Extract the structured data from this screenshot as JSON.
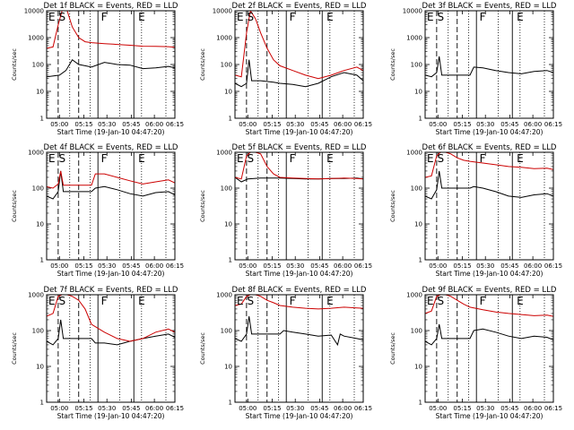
{
  "figure": {
    "x_title": "Start Time (19-Jan-10 04:47:20)",
    "y_label": "Counts/sec"
  },
  "chart_data": [
    {
      "type": "line",
      "title": "Det 1f BLACK = Events, RED = LLD",
      "xlabel": "Start Time (19-Jan-10 04:47:20)",
      "ylabel": "Counts/sec",
      "y_scale": "log",
      "ylim": [
        1,
        10000
      ],
      "x_ticks": [
        "05:00",
        "05:15",
        "05:30",
        "05:45",
        "06:00",
        "06:15"
      ],
      "y_ticks": [
        "1",
        "10",
        "100",
        "1000",
        "10000"
      ],
      "region_labels": [
        "E",
        "S",
        "F",
        "E"
      ],
      "series": [
        {
          "name": "Events",
          "color": "#000000",
          "x": [
            0,
            0.1,
            0.15,
            0.2,
            0.25,
            0.3,
            0.35,
            0.45,
            0.55,
            0.65,
            0.75,
            0.85,
            0.95,
            1
          ],
          "y": [
            35,
            40,
            60,
            150,
            100,
            90,
            80,
            120,
            100,
            95,
            70,
            75,
            85,
            75
          ]
        },
        {
          "name": "LLD",
          "color": "#cc0000",
          "x": [
            0,
            0.05,
            0.09,
            0.12,
            0.16,
            0.2,
            0.25,
            0.3,
            0.35,
            0.45,
            0.55,
            0.65,
            0.75,
            0.85,
            0.95,
            1
          ],
          "y": [
            400,
            450,
            3000,
            10000,
            10000,
            2500,
            1000,
            700,
            650,
            600,
            560,
            520,
            480,
            470,
            460,
            440
          ]
        }
      ]
    },
    {
      "type": "line",
      "title": "Det 2f BLACK = Events, RED = LLD",
      "xlabel": "Start Time (19-Jan-10 04:47:20)",
      "ylabel": "Counts/sec",
      "y_scale": "log",
      "ylim": [
        1,
        10000
      ],
      "x_ticks": [
        "05:00",
        "05:15",
        "05:30",
        "05:45",
        "06:00",
        "06:15"
      ],
      "y_ticks": [
        "1",
        "10",
        "100",
        "1000",
        "10000"
      ],
      "region_labels": [
        "E",
        "S",
        "F",
        "E"
      ],
      "series": [
        {
          "name": "Events",
          "color": "#000000",
          "x": [
            0,
            0.05,
            0.09,
            0.11,
            0.13,
            0.2,
            0.3,
            0.35,
            0.45,
            0.55,
            0.65,
            0.75,
            0.85,
            0.95,
            1
          ],
          "y": [
            20,
            15,
            20,
            150,
            25,
            25,
            22,
            20,
            18,
            15,
            20,
            35,
            50,
            40,
            25
          ]
        },
        {
          "name": "LLD",
          "color": "#cc0000",
          "x": [
            0,
            0.05,
            0.09,
            0.12,
            0.16,
            0.2,
            0.25,
            0.3,
            0.35,
            0.45,
            0.55,
            0.65,
            0.75,
            0.85,
            0.95,
            1
          ],
          "y": [
            40,
            35,
            1500,
            10000,
            5000,
            1500,
            400,
            150,
            90,
            60,
            40,
            30,
            40,
            60,
            80,
            60
          ]
        }
      ]
    },
    {
      "type": "line",
      "title": "Det 3f BLACK = Events, RED = LLD",
      "xlabel": "Start Time (19-Jan-10 04:47:20)",
      "ylabel": "Counts/sec",
      "y_scale": "log",
      "ylim": [
        1,
        10000
      ],
      "x_ticks": [
        "05:00",
        "05:15",
        "05:30",
        "05:45",
        "06:00",
        "06:15"
      ],
      "y_ticks": [
        "1",
        "10",
        "100",
        "1000",
        "10000"
      ],
      "region_labels": [
        "E",
        "S",
        "F",
        "E"
      ],
      "series": [
        {
          "name": "Events",
          "color": "#000000",
          "x": [
            0,
            0.05,
            0.09,
            0.11,
            0.13,
            0.35,
            0.38,
            0.45,
            0.55,
            0.65,
            0.75,
            0.85,
            0.95,
            1
          ],
          "y": [
            40,
            35,
            50,
            200,
            40,
            40,
            80,
            75,
            60,
            50,
            45,
            55,
            60,
            50
          ]
        }
      ]
    },
    {
      "type": "line",
      "title": "Det 4f BLACK = Events, RED = LLD",
      "xlabel": "Start Time (19-Jan-10 04:47:20)",
      "ylabel": "Counts/sec",
      "y_scale": "log",
      "ylim": [
        1,
        1000
      ],
      "x_ticks": [
        "05:00",
        "05:15",
        "05:30",
        "05:45",
        "06:00",
        "06:15"
      ],
      "y_ticks": [
        "1",
        "10",
        "100",
        "1000"
      ],
      "region_labels": [
        "E",
        "S",
        "F",
        "E"
      ],
      "series": [
        {
          "name": "Events",
          "color": "#000000",
          "x": [
            0,
            0.05,
            0.09,
            0.11,
            0.13,
            0.35,
            0.38,
            0.45,
            0.55,
            0.65,
            0.75,
            0.85,
            0.95,
            1
          ],
          "y": [
            60,
            50,
            80,
            300,
            80,
            80,
            100,
            110,
            90,
            70,
            60,
            75,
            80,
            65
          ]
        },
        {
          "name": "LLD",
          "color": "#cc0000",
          "x": [
            0,
            0.05,
            0.09,
            0.11,
            0.13,
            0.35,
            0.38,
            0.45,
            0.55,
            0.65,
            0.75,
            0.85,
            0.95,
            1
          ],
          "y": [
            110,
            100,
            130,
            300,
            120,
            120,
            250,
            250,
            200,
            160,
            130,
            150,
            170,
            140
          ]
        }
      ]
    },
    {
      "type": "line",
      "title": "Det 5f BLACK = Events, RED = LLD",
      "xlabel": "Start Time (19-Jan-10 04:47:20)",
      "ylabel": "Counts/sec",
      "y_scale": "log",
      "ylim": [
        1,
        1000
      ],
      "x_ticks": [
        "05:00",
        "05:15",
        "05:30",
        "05:45",
        "06:00",
        "06:15"
      ],
      "y_ticks": [
        "1",
        "10",
        "100",
        "1000"
      ],
      "region_labels": [
        "E",
        "S",
        "F",
        "E"
      ],
      "series": [
        {
          "name": "Events",
          "color": "#000000",
          "x": [
            0,
            0.05,
            0.1,
            0.2,
            0.3,
            0.35,
            0.45,
            0.55,
            0.65,
            0.75,
            0.85,
            0.95,
            1
          ],
          "y": [
            200,
            150,
            180,
            190,
            190,
            190,
            185,
            180,
            180,
            185,
            185,
            190,
            180
          ]
        },
        {
          "name": "LLD",
          "color": "#cc0000",
          "x": [
            0,
            0.05,
            0.09,
            0.12,
            0.16,
            0.2,
            0.25,
            0.3,
            0.35,
            0.45,
            0.55,
            0.65,
            0.75,
            0.85,
            0.95,
            1
          ],
          "y": [
            200,
            180,
            800,
            1000,
            1000,
            900,
            400,
            250,
            200,
            190,
            185,
            180,
            185,
            190,
            185,
            180
          ]
        }
      ]
    },
    {
      "type": "line",
      "title": "Det 6f BLACK = Events, RED = LLD",
      "xlabel": "Start Time (19-Jan-10 04:47:20)",
      "ylabel": "Counts/sec",
      "y_scale": "log",
      "ylim": [
        1,
        1000
      ],
      "x_ticks": [
        "05:00",
        "05:15",
        "05:30",
        "05:45",
        "06:00",
        "06:15"
      ],
      "y_ticks": [
        "1",
        "10",
        "100",
        "1000"
      ],
      "region_labels": [
        "E",
        "S",
        "F",
        "E"
      ],
      "series": [
        {
          "name": "Events",
          "color": "#000000",
          "x": [
            0,
            0.05,
            0.09,
            0.11,
            0.13,
            0.35,
            0.38,
            0.45,
            0.55,
            0.65,
            0.75,
            0.85,
            0.95,
            1
          ],
          "y": [
            60,
            50,
            90,
            300,
            100,
            100,
            110,
            100,
            80,
            60,
            55,
            65,
            70,
            60
          ]
        },
        {
          "name": "LLD",
          "color": "#cc0000",
          "x": [
            0,
            0.05,
            0.09,
            0.12,
            0.16,
            0.2,
            0.25,
            0.3,
            0.35,
            0.45,
            0.55,
            0.65,
            0.75,
            0.85,
            0.95,
            1
          ],
          "y": [
            200,
            220,
            800,
            1000,
            1000,
            900,
            700,
            600,
            560,
            500,
            450,
            400,
            380,
            350,
            360,
            330
          ]
        }
      ]
    },
    {
      "type": "line",
      "title": "Det 7f BLACK = Events, RED = LLD",
      "xlabel": "Start Time (19-Jan-10 04:47:20)",
      "ylabel": "Counts/sec",
      "y_scale": "log",
      "ylim": [
        1,
        1000
      ],
      "x_ticks": [
        "05:00",
        "05:15",
        "05:30",
        "05:45",
        "06:00",
        "06:15"
      ],
      "y_ticks": [
        "1",
        "10",
        "100",
        "1000"
      ],
      "region_labels": [
        "E",
        "S",
        "F",
        "E"
      ],
      "series": [
        {
          "name": "Events",
          "color": "#000000",
          "x": [
            0,
            0.05,
            0.09,
            0.11,
            0.13,
            0.35,
            0.38,
            0.45,
            0.55,
            0.65,
            0.75,
            0.85,
            0.95,
            1
          ],
          "y": [
            50,
            40,
            60,
            200,
            60,
            60,
            45,
            45,
            40,
            50,
            60,
            70,
            80,
            65
          ]
        },
        {
          "name": "LLD",
          "color": "#cc0000",
          "x": [
            0,
            0.05,
            0.09,
            0.12,
            0.16,
            0.2,
            0.25,
            0.3,
            0.35,
            0.45,
            0.55,
            0.65,
            0.75,
            0.85,
            0.95,
            1
          ],
          "y": [
            250,
            300,
            900,
            1000,
            1000,
            900,
            700,
            400,
            150,
            90,
            60,
            50,
            60,
            90,
            110,
            90
          ]
        }
      ]
    },
    {
      "type": "line",
      "title": "Det 8f BLACK = Events, RED = LLD",
      "xlabel": "Start Time (19-Jan-10 04:47:20)",
      "ylabel": "Counts/sec",
      "y_scale": "log",
      "ylim": [
        1,
        1000
      ],
      "x_ticks": [
        "05:00",
        "05:15",
        "05:30",
        "05:45",
        "06:00",
        "06:15"
      ],
      "y_ticks": [
        "1",
        "10",
        "100",
        "1000"
      ],
      "region_labels": [
        "E",
        "S",
        "F",
        "E"
      ],
      "series": [
        {
          "name": "Events",
          "color": "#000000",
          "x": [
            0,
            0.05,
            0.09,
            0.11,
            0.13,
            0.35,
            0.38,
            0.45,
            0.55,
            0.65,
            0.75,
            0.8,
            0.82,
            0.85,
            0.95,
            1
          ],
          "y": [
            60,
            50,
            80,
            250,
            80,
            80,
            100,
            90,
            80,
            70,
            75,
            40,
            80,
            70,
            60,
            55
          ]
        },
        {
          "name": "LLD",
          "color": "#cc0000",
          "x": [
            0,
            0.05,
            0.09,
            0.12,
            0.16,
            0.2,
            0.25,
            0.3,
            0.35,
            0.45,
            0.55,
            0.65,
            0.75,
            0.85,
            0.95,
            1
          ],
          "y": [
            500,
            550,
            900,
            1000,
            1000,
            900,
            700,
            600,
            500,
            450,
            420,
            400,
            420,
            450,
            430,
            420
          ]
        }
      ]
    },
    {
      "type": "line",
      "title": "Det 9f BLACK = Events, RED = LLD",
      "xlabel": "Start Time (19-Jan-10 04:47:20)",
      "ylabel": "Counts/sec",
      "y_scale": "log",
      "ylim": [
        1,
        1000
      ],
      "x_ticks": [
        "05:00",
        "05:15",
        "05:30",
        "05:45",
        "06:00",
        "06:15"
      ],
      "y_ticks": [
        "1",
        "10",
        "100",
        "1000"
      ],
      "region_labels": [
        "E",
        "S",
        "F",
        "E"
      ],
      "series": [
        {
          "name": "Events",
          "color": "#000000",
          "x": [
            0,
            0.05,
            0.09,
            0.11,
            0.13,
            0.35,
            0.38,
            0.45,
            0.55,
            0.65,
            0.75,
            0.85,
            0.95,
            1
          ],
          "y": [
            50,
            40,
            60,
            150,
            60,
            60,
            100,
            110,
            90,
            70,
            60,
            70,
            65,
            55
          ]
        },
        {
          "name": "LLD",
          "color": "#cc0000",
          "x": [
            0,
            0.05,
            0.09,
            0.12,
            0.16,
            0.2,
            0.25,
            0.3,
            0.35,
            0.45,
            0.55,
            0.65,
            0.75,
            0.85,
            0.95,
            1
          ],
          "y": [
            300,
            350,
            900,
            1000,
            1000,
            900,
            700,
            550,
            450,
            380,
            330,
            300,
            280,
            260,
            270,
            250
          ]
        }
      ]
    }
  ]
}
